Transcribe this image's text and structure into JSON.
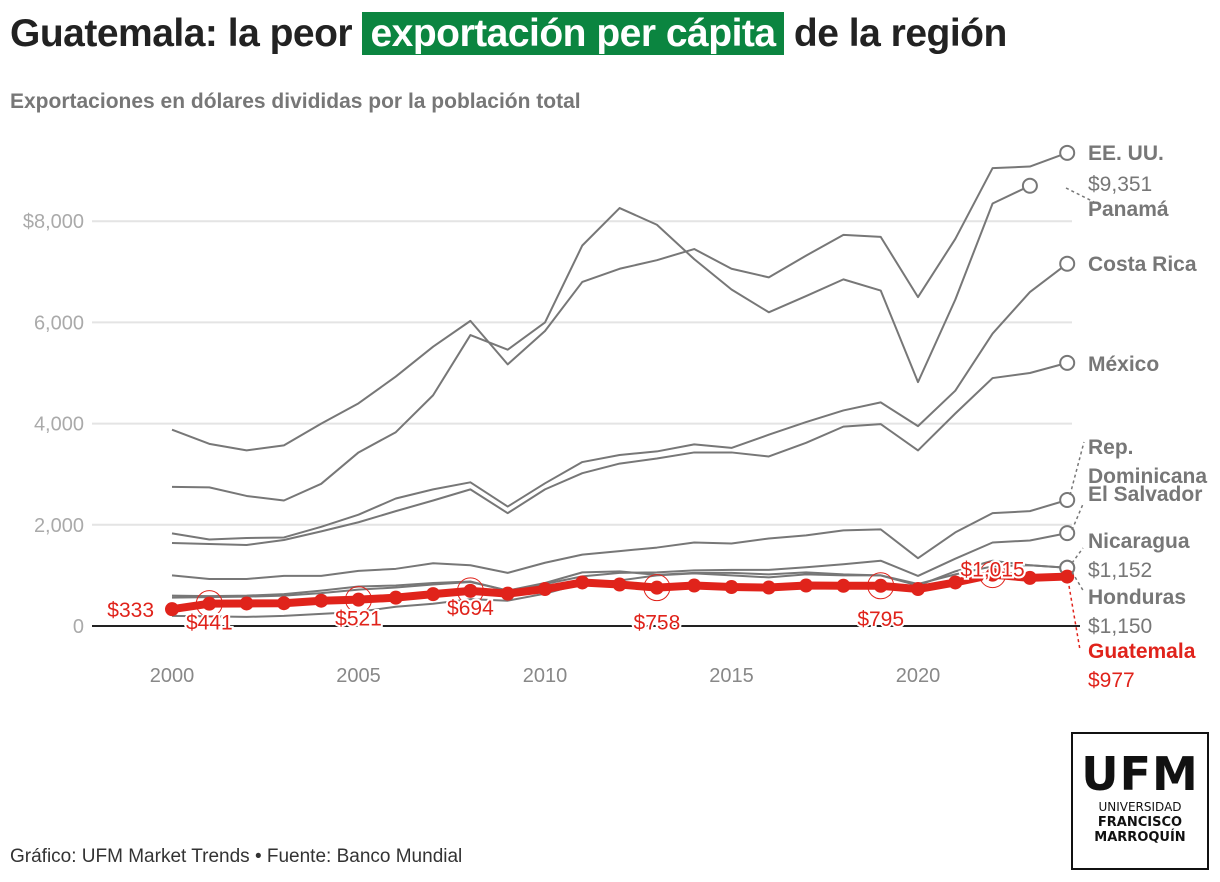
{
  "title": {
    "before": "Guatemala: la peor ",
    "highlight": "exportación per cápita",
    "after": " de la región",
    "highlight_color": "#0b8540"
  },
  "subtitle": "Exportaciones en dólares divididas por la población total",
  "footer": "Gráfico: UFM Market Trends • Fuente: Banco Mundial",
  "logo": {
    "line1": "UFM",
    "line2": "UNIVERSIDAD",
    "line3": "FRANCISCO",
    "line4": "MARROQUÍN"
  },
  "chart_data": {
    "type": "line",
    "x": [
      2000,
      2001,
      2002,
      2003,
      2004,
      2005,
      2006,
      2007,
      2008,
      2009,
      2010,
      2011,
      2012,
      2013,
      2014,
      2015,
      2016,
      2017,
      2018,
      2019,
      2020,
      2021,
      2022,
      2023,
      2024
    ],
    "x_ticks": [
      "2000",
      "2005",
      "2010",
      "2015",
      "2020"
    ],
    "y_ticks": [
      "$8,000",
      "6,000",
      "4,000",
      "2,000",
      "0"
    ],
    "ylim": [
      0,
      9500
    ],
    "grid": true,
    "series": [
      {
        "name": "EE. UU.",
        "end_label": "$9,351",
        "color": "#777777",
        "values": [
          3880,
          3600,
          3470,
          3570,
          4000,
          4400,
          4930,
          5520,
          6030,
          5170,
          5830,
          6800,
          7060,
          7230,
          7450,
          7060,
          6890,
          7320,
          7730,
          7690,
          6500,
          7650,
          9050,
          9080,
          9351
        ]
      },
      {
        "name": "Panamá",
        "color": "#777777",
        "values": [
          2750,
          2740,
          2570,
          2480,
          2810,
          3430,
          3830,
          4560,
          5750,
          5460,
          6000,
          7520,
          8260,
          7930,
          7250,
          6650,
          6200,
          6520,
          6850,
          6630,
          4820,
          6450,
          8350,
          8700,
          null
        ]
      },
      {
        "name": "Costa Rica",
        "color": "#777777",
        "values": [
          1830,
          1710,
          1740,
          1750,
          1960,
          2200,
          2520,
          2700,
          2840,
          2360,
          2820,
          3240,
          3380,
          3450,
          3590,
          3520,
          3780,
          4030,
          4260,
          4420,
          3950,
          4650,
          5780,
          6600,
          7160
        ]
      },
      {
        "name": "México",
        "color": "#777777",
        "values": [
          1640,
          1620,
          1600,
          1700,
          1870,
          2050,
          2270,
          2480,
          2700,
          2230,
          2700,
          3020,
          3210,
          3310,
          3430,
          3430,
          3350,
          3620,
          3940,
          3990,
          3470,
          4200,
          4900,
          5000,
          5200
        ]
      },
      {
        "name": "Rep. Dominicana",
        "color": "#777777",
        "values": [
          1000,
          930,
          930,
          990,
          990,
          1090,
          1130,
          1240,
          1200,
          1050,
          1250,
          1410,
          1480,
          1550,
          1650,
          1630,
          1730,
          1790,
          1890,
          1910,
          1340,
          1850,
          2230,
          2270,
          2490
        ]
      },
      {
        "name": "El Salvador",
        "color": "#777777",
        "values": [
          560,
          570,
          580,
          600,
          650,
          720,
          760,
          820,
          870,
          700,
          830,
          980,
          1050,
          1060,
          1100,
          1110,
          1110,
          1160,
          1220,
          1290,
          990,
          1330,
          1650,
          1690,
          1835
        ]
      },
      {
        "name": "Nicaragua",
        "end_label": "$1,152",
        "color": "#777777",
        "values": [
          200,
          190,
          180,
          200,
          240,
          280,
          380,
          440,
          530,
          500,
          640,
          840,
          900,
          1000,
          1040,
          1000,
          960,
          1020,
          1000,
          1000,
          830,
          1020,
          1180,
          1200,
          1152
        ]
      },
      {
        "name": "Honduras",
        "end_label": "$1,150",
        "color": "#777777",
        "values": [
          600,
          590,
          600,
          630,
          700,
          780,
          800,
          850,
          880,
          700,
          850,
          1060,
          1080,
          1010,
          1050,
          1050,
          1020,
          1060,
          1020,
          1000,
          800,
          1080,
          1290,
          1200,
          1150
        ]
      },
      {
        "name": "Guatemala",
        "end_label": "$977",
        "color": "#e0231b",
        "values": [
          333,
          441,
          445,
          450,
          500,
          521,
          560,
          630,
          694,
          640,
          730,
          860,
          820,
          758,
          800,
          770,
          760,
          800,
          795,
          795,
          730,
          860,
          1015,
          950,
          977
        ]
      }
    ],
    "annotations": [
      {
        "year": 2000,
        "label": "$333"
      },
      {
        "year": 2001,
        "label": "$441"
      },
      {
        "year": 2005,
        "label": "$521"
      },
      {
        "year": 2008,
        "label": "$694"
      },
      {
        "year": 2013,
        "label": "$758"
      },
      {
        "year": 2019,
        "label": "$795"
      },
      {
        "year": 2022,
        "label": "$1,015"
      }
    ]
  }
}
